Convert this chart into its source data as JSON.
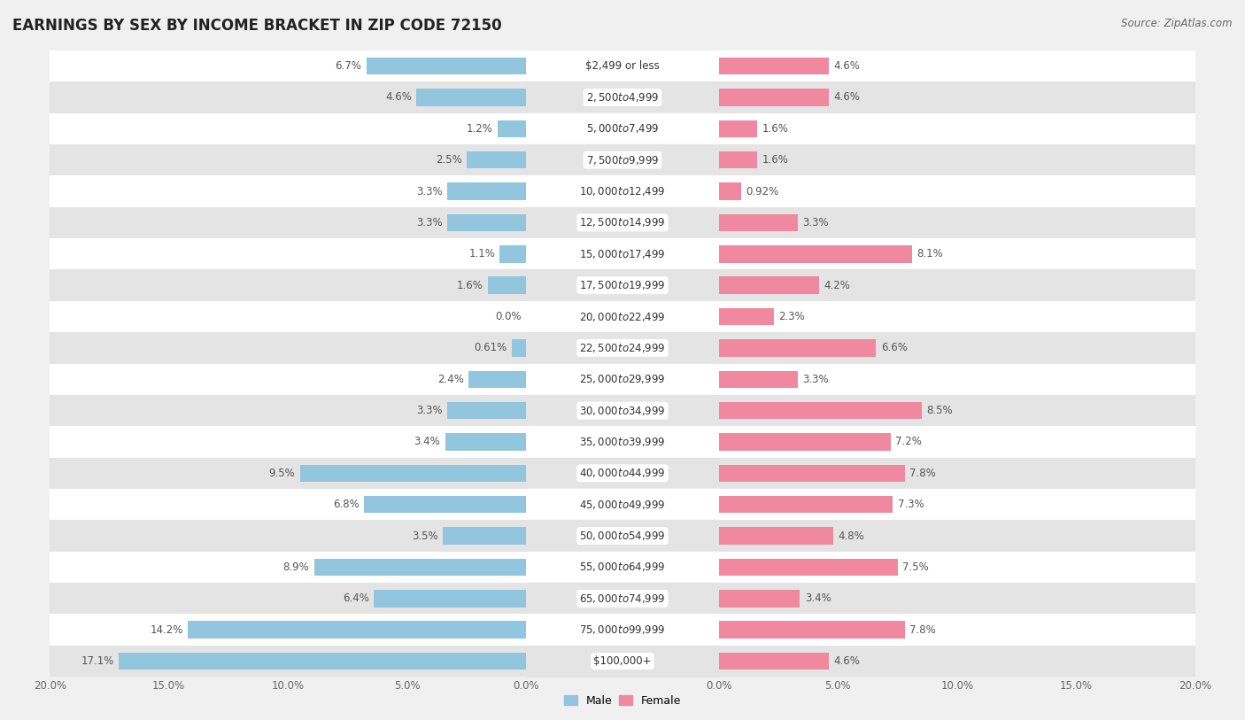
{
  "title": "EARNINGS BY SEX BY INCOME BRACKET IN ZIP CODE 72150",
  "source": "Source: ZipAtlas.com",
  "categories": [
    "$2,499 or less",
    "$2,500 to $4,999",
    "$5,000 to $7,499",
    "$7,500 to $9,999",
    "$10,000 to $12,499",
    "$12,500 to $14,999",
    "$15,000 to $17,499",
    "$17,500 to $19,999",
    "$20,000 to $22,499",
    "$22,500 to $24,999",
    "$25,000 to $29,999",
    "$30,000 to $34,999",
    "$35,000 to $39,999",
    "$40,000 to $44,999",
    "$45,000 to $49,999",
    "$50,000 to $54,999",
    "$55,000 to $64,999",
    "$65,000 to $74,999",
    "$75,000 to $99,999",
    "$100,000+"
  ],
  "male": [
    6.7,
    4.6,
    1.2,
    2.5,
    3.3,
    3.3,
    1.1,
    1.6,
    0.0,
    0.61,
    2.4,
    3.3,
    3.4,
    9.5,
    6.8,
    3.5,
    8.9,
    6.4,
    14.2,
    17.1
  ],
  "female": [
    4.6,
    4.6,
    1.6,
    1.6,
    0.92,
    3.3,
    8.1,
    4.2,
    2.3,
    6.6,
    3.3,
    8.5,
    7.2,
    7.8,
    7.3,
    4.8,
    7.5,
    3.4,
    7.8,
    4.6
  ],
  "male_color": "#92c5de",
  "female_color": "#f088a0",
  "male_label_color": "#555555",
  "female_label_color": "#555555",
  "axis_max": 20.0,
  "bar_height": 0.55,
  "background_color": "#f0f0f0",
  "row_color_even": "#ffffff",
  "row_color_odd": "#e4e4e4",
  "title_fontsize": 12,
  "label_fontsize": 8.5,
  "category_fontsize": 8.5,
  "source_fontsize": 8.5,
  "tick_fontsize": 8.5
}
